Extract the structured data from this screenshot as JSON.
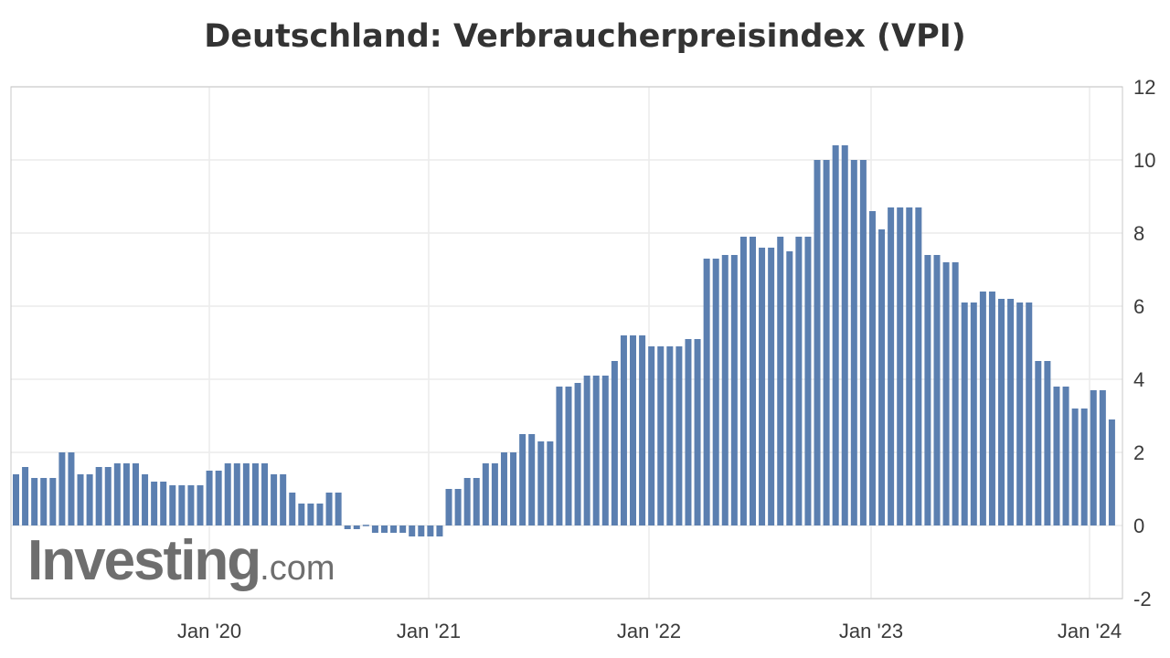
{
  "chart_data": {
    "type": "bar",
    "title": "Deutschland: Verbraucherpreisindex (VPI)",
    "ylim": [
      -2,
      12
    ],
    "yticks": [
      -2,
      0,
      2,
      4,
      6,
      8,
      10,
      12
    ],
    "y_axis_position": "right",
    "grid": true,
    "x_tick_labels": [
      "Jan '20",
      "Jan '21",
      "Jan '22",
      "Jan '23",
      "Jan '24"
    ],
    "series": [
      {
        "color": "#5b7fb0",
        "values": [
          1.4,
          1.6,
          1.3,
          1.3,
          1.3,
          2.0,
          2.0,
          1.4,
          1.4,
          1.6,
          1.6,
          1.7,
          1.7,
          1.7,
          1.4,
          1.2,
          1.2,
          1.1,
          1.1,
          1.1,
          1.1,
          1.5,
          1.5,
          1.7,
          1.7,
          1.7,
          1.7,
          1.7,
          1.4,
          1.4,
          0.9,
          0.6,
          0.6,
          0.6,
          0.9,
          0.9,
          -0.1,
          -0.1,
          0.0,
          -0.2,
          -0.2,
          -0.2,
          -0.2,
          -0.3,
          -0.3,
          -0.3,
          -0.3,
          1.0,
          1.0,
          1.3,
          1.3,
          1.7,
          1.7,
          2.0,
          2.0,
          2.5,
          2.5,
          2.3,
          2.3,
          3.8,
          3.8,
          3.9,
          4.1,
          4.1,
          4.1,
          4.5,
          5.2,
          5.2,
          5.2,
          4.9,
          4.9,
          4.9,
          4.9,
          5.1,
          5.1,
          7.3,
          7.3,
          7.4,
          7.4,
          7.9,
          7.9,
          7.6,
          7.6,
          7.9,
          7.5,
          7.9,
          7.9,
          10.0,
          10.0,
          10.4,
          10.4,
          10.0,
          10.0,
          8.6,
          8.1,
          8.7,
          8.7,
          8.7,
          8.7,
          7.4,
          7.4,
          7.2,
          7.2,
          6.1,
          6.1,
          6.4,
          6.4,
          6.2,
          6.2,
          6.1,
          6.1,
          4.5,
          4.5,
          3.8,
          3.8,
          3.2,
          3.2,
          3.7,
          3.7,
          2.9
        ]
      }
    ]
  },
  "watermark": {
    "main": "Investing",
    "suffix": ".com"
  }
}
